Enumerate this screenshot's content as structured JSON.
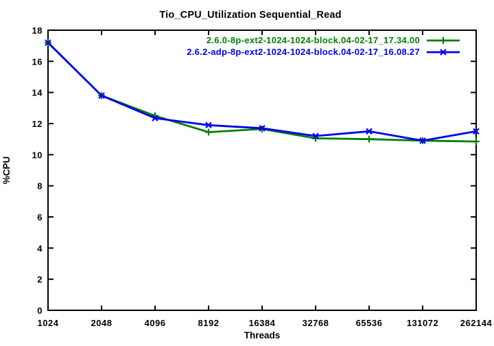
{
  "chart_data": {
    "type": "line",
    "title": "Tio_CPU_Utilization Sequential_Read",
    "xlabel": "Threads",
    "ylabel": "%CPU",
    "x_scale": "log2",
    "x": [
      1024,
      2048,
      4096,
      8192,
      16384,
      32768,
      65536,
      131072,
      262144
    ],
    "x_tick_labels": [
      "1024",
      "2048",
      "4096",
      "8192",
      "16384",
      "32768",
      "65536",
      "131072",
      "262144"
    ],
    "ylim": [
      0,
      18
    ],
    "ytick_step": 2,
    "grid": false,
    "legend_position": "top-right-inside",
    "background": "#ffffff",
    "axis_color": "#000000",
    "series": [
      {
        "name": "2.6.0-8p-ext2-1024-1024-block.04-02-17_17.34.00",
        "color": "#007f00",
        "marker": "plus",
        "values": [
          17.2,
          13.8,
          12.5,
          11.45,
          11.65,
          11.05,
          11.0,
          10.9,
          10.85
        ]
      },
      {
        "name": "2.6.2-adp-8p-ext2-1024-1024-block.04-02-17_16.08.27",
        "color": "#0000ee",
        "marker": "cross",
        "values": [
          17.2,
          13.8,
          12.35,
          11.9,
          11.7,
          11.2,
          11.5,
          10.9,
          11.5
        ]
      }
    ]
  }
}
